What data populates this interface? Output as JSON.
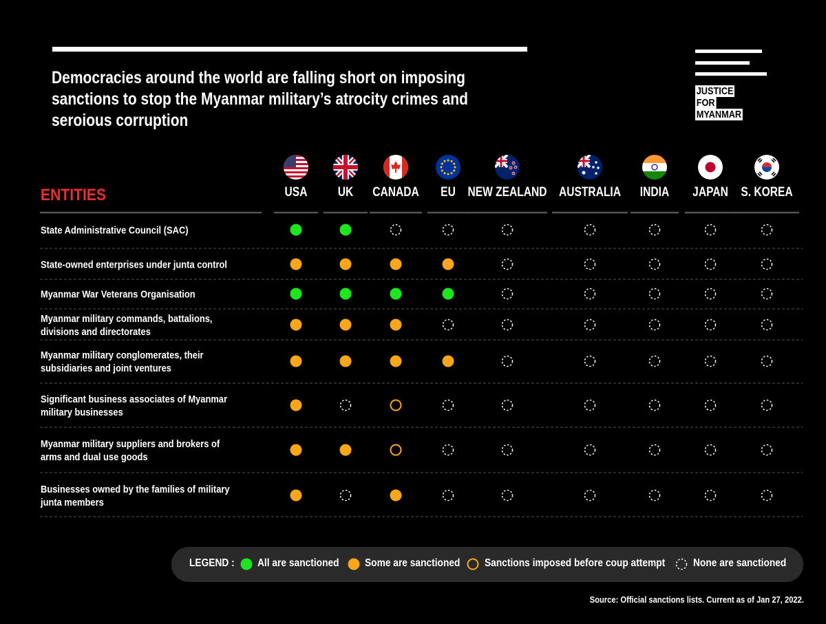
{
  "header": {
    "title": "Democracies around the world are falling short on imposing sanctions to stop the Myanmar military’s atrocity crimes and seroious corruption",
    "logo": [
      "JUSTICE",
      "FOR",
      "MYANMAR"
    ]
  },
  "table": {
    "row_header": "ENTITIES",
    "columns": [
      "USA",
      "UK",
      "CANADA",
      "EU",
      "NEW ZEALAND",
      "AUSTRALIA",
      "INDIA",
      "JAPAN",
      "S. KOREA"
    ],
    "rows": [
      {
        "entity": "State Administrative Council (SAC)",
        "status": [
          0,
          0,
          3,
          3,
          3,
          3,
          3,
          3,
          3
        ]
      },
      {
        "entity": "State-owned enterprises under junta control",
        "status": [
          1,
          1,
          1,
          1,
          3,
          3,
          3,
          3,
          3
        ]
      },
      {
        "entity": "Myanmar War Veterans Organisation",
        "status": [
          0,
          0,
          0,
          0,
          3,
          3,
          3,
          3,
          3
        ]
      },
      {
        "entity": "Myanmar military commands, battalions, divisions and directorates",
        "status": [
          1,
          1,
          1,
          3,
          3,
          3,
          3,
          3,
          3
        ]
      },
      {
        "entity": "Myanmar military conglomerates, their subsidiaries and joint ventures",
        "status": [
          1,
          1,
          1,
          1,
          3,
          3,
          3,
          3,
          3
        ]
      },
      {
        "entity": "Significant business associates of Myanmar military businesses",
        "status": [
          1,
          3,
          2,
          3,
          3,
          3,
          3,
          3,
          3
        ]
      },
      {
        "entity": "Myanmar military suppliers and brokers of arms and dual use goods",
        "status": [
          1,
          1,
          2,
          3,
          3,
          3,
          3,
          3,
          3
        ]
      },
      {
        "entity": "Businesses owned by the families of military junta members",
        "status": [
          1,
          3,
          1,
          3,
          3,
          3,
          3,
          3,
          3
        ]
      }
    ]
  },
  "legend": {
    "label": "LEGEND :",
    "items": [
      "All are sanctioned",
      "Some are sanctioned",
      "Sanctions imposed before coup attempt",
      "None are sanctioned"
    ]
  },
  "source": "Source: Official sanctions lists. Current as of Jan 27, 2022."
}
